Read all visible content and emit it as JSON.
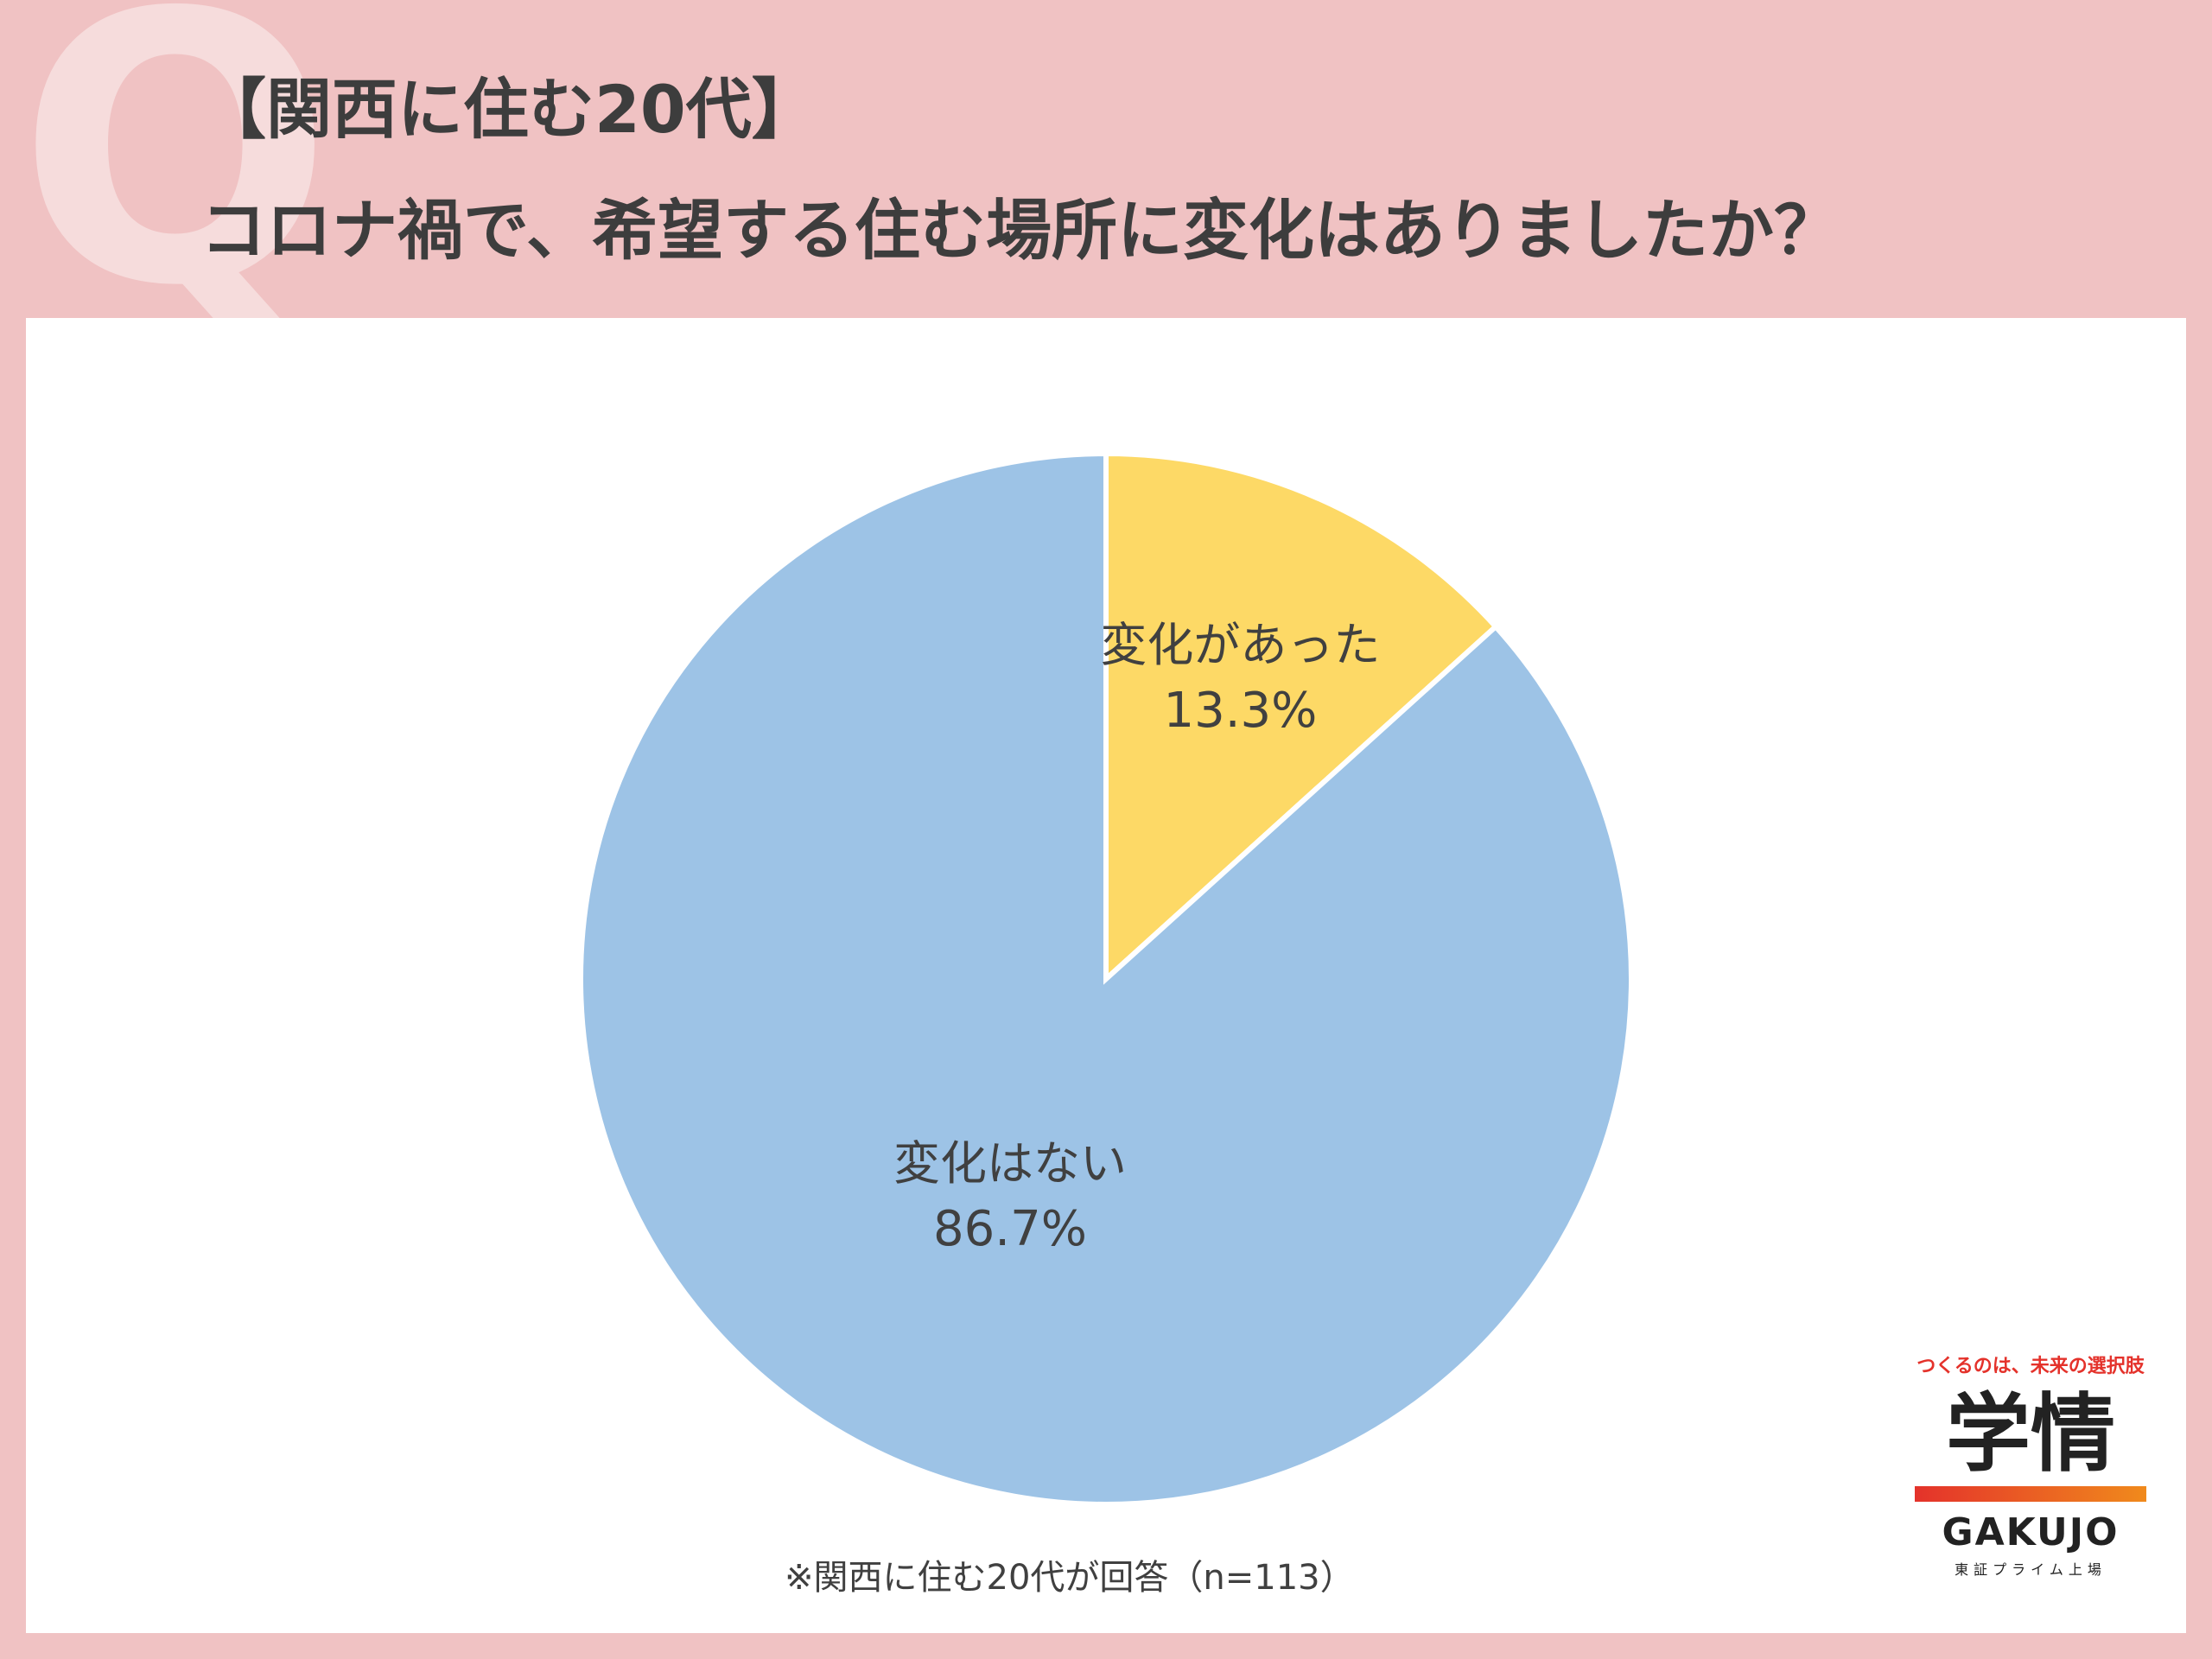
{
  "header": {
    "title_line1": "【関西に住む20代】",
    "title_line2": "コロナ禍で、希望する住む場所に変化はありましたか？"
  },
  "chart_data": {
    "type": "pie",
    "slices": [
      {
        "label": "変化があった",
        "value": 13.3,
        "display": "13.3%",
        "color": "#fdd966"
      },
      {
        "label": "変化はない",
        "value": 86.7,
        "display": "86.7%",
        "color": "#9dc3e6"
      }
    ]
  },
  "footnote": "※関西に住む20代が回答（n=113）",
  "brand": {
    "tagline": "つくるのは、未来の選択肢",
    "name": "学情",
    "roman": "GAKUJO",
    "listing": "東証プライム上場"
  }
}
